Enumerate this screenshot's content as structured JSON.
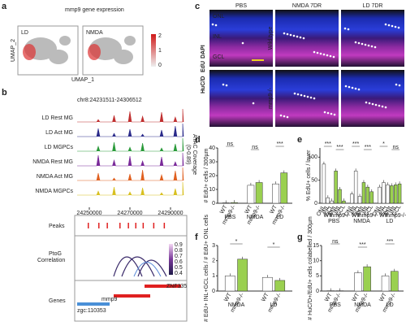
{
  "panels": {
    "a": {
      "letter": "a",
      "title": "mmp9 gene expression",
      "plots": [
        "LD",
        "NMDA"
      ],
      "x_axis": "UMAP_1",
      "y_axis": "UMAP_2",
      "scale": [
        2,
        1,
        0
      ]
    },
    "b": {
      "letter": "b",
      "region": "chr8:24231511-24306512",
      "tracks": [
        "LD Rest MG",
        "LD Act MG",
        "LD MGPCs",
        "NMDA Rest MG",
        "NMDA Act MG",
        "NMDA MGPCs"
      ],
      "y_axis": "ATAC Coverage",
      "range": "(0-0.89)",
      "xticks": [
        24250000,
        24270000,
        24290000
      ],
      "peaks_label": "Peaks",
      "ptog_label": [
        "PtoG",
        "Correlation"
      ],
      "genes_label": "Genes",
      "corr_scale": [
        0.9,
        0.8,
        0.7,
        0.6,
        0.5,
        0.4
      ],
      "genes": [
        "zgc:110353",
        "mmp9",
        "ZNF335"
      ]
    },
    "c": {
      "letter": "c",
      "columns": [
        "PBS",
        "NMDA 7DR",
        "LD 7DR"
      ],
      "layers": [
        "ONL",
        "INL",
        "GCL"
      ],
      "stain": [
        "HuC/D",
        "EdU",
        "DAPI"
      ],
      "rows": [
        "Wild type",
        "mmp9-/-"
      ]
    },
    "d": {
      "letter": "d",
      "ylabel": "# EdU+ cells / 300µm",
      "ylim": [
        0,
        40
      ],
      "yticks": [
        0,
        10,
        20,
        30,
        40
      ],
      "labels": [
        "WT",
        "mmp9-/-",
        "WT",
        "mmp9-/-",
        "WT",
        "mmp9-/-"
      ],
      "values": [
        0.3,
        0.5,
        13,
        15,
        14,
        22
      ],
      "groups": [
        "PBS",
        "NMDA",
        "LD"
      ],
      "sig": [
        "ns",
        "ns",
        "***"
      ]
    },
    "e": {
      "letter": "e",
      "ylabel": "% EdU+ cells / layer",
      "ylim": [
        0,
        120
      ],
      "yticks": [
        0,
        50,
        100
      ],
      "labels": [
        "ONL",
        "INL",
        "GCL",
        "ONL",
        "INL",
        "GCL",
        "ONL",
        "INL",
        "GCL",
        "ONL",
        "INL",
        "GCL",
        "ONL",
        "INL",
        "GCL",
        "ONL",
        "INL",
        "GCL"
      ],
      "values": [
        85,
        12,
        5,
        70,
        30,
        5,
        20,
        70,
        15,
        45,
        35,
        25,
        35,
        45,
        40,
        38,
        40,
        42
      ],
      "subgroups": [
        "WT",
        "mmp9-/-",
        "WT",
        "mmp9-/-",
        "WT",
        "mmp9-/-"
      ],
      "groups": [
        "PBS",
        "NMDA",
        "LD"
      ],
      "sig": [
        "***",
        "***",
        "***",
        "***",
        "*",
        "ns"
      ]
    },
    "f": {
      "letter": "f",
      "ylabel": "# EdU+ INL+GCL cells / # EdU+ ONL cells",
      "ylim": [
        0,
        3
      ],
      "yticks": [
        0,
        1,
        2,
        3
      ],
      "labels": [
        "WT",
        "mmp9-/-",
        "WT",
        "mmp9-/-"
      ],
      "values": [
        1.0,
        2.1,
        0.9,
        0.7
      ],
      "groups": [
        "NMDA",
        "LD"
      ],
      "sig": [
        "*",
        "*"
      ]
    },
    "g": {
      "letter": "g",
      "ylabel": "# HuC/D+/EdU+ cells colabelled / 300µm",
      "ylim": [
        0,
        15
      ],
      "yticks": [
        0,
        5,
        10,
        15
      ],
      "labels": [
        "WT",
        "mmp9-/-",
        "WT",
        "mmp9-/-",
        "WT",
        "mmp9-/-"
      ],
      "values": [
        0.1,
        0.1,
        6,
        8,
        5,
        6.5
      ],
      "groups": [
        "PBS",
        "NMDA",
        "LD"
      ],
      "sig": [
        "ns",
        "***",
        "***"
      ]
    }
  }
}
